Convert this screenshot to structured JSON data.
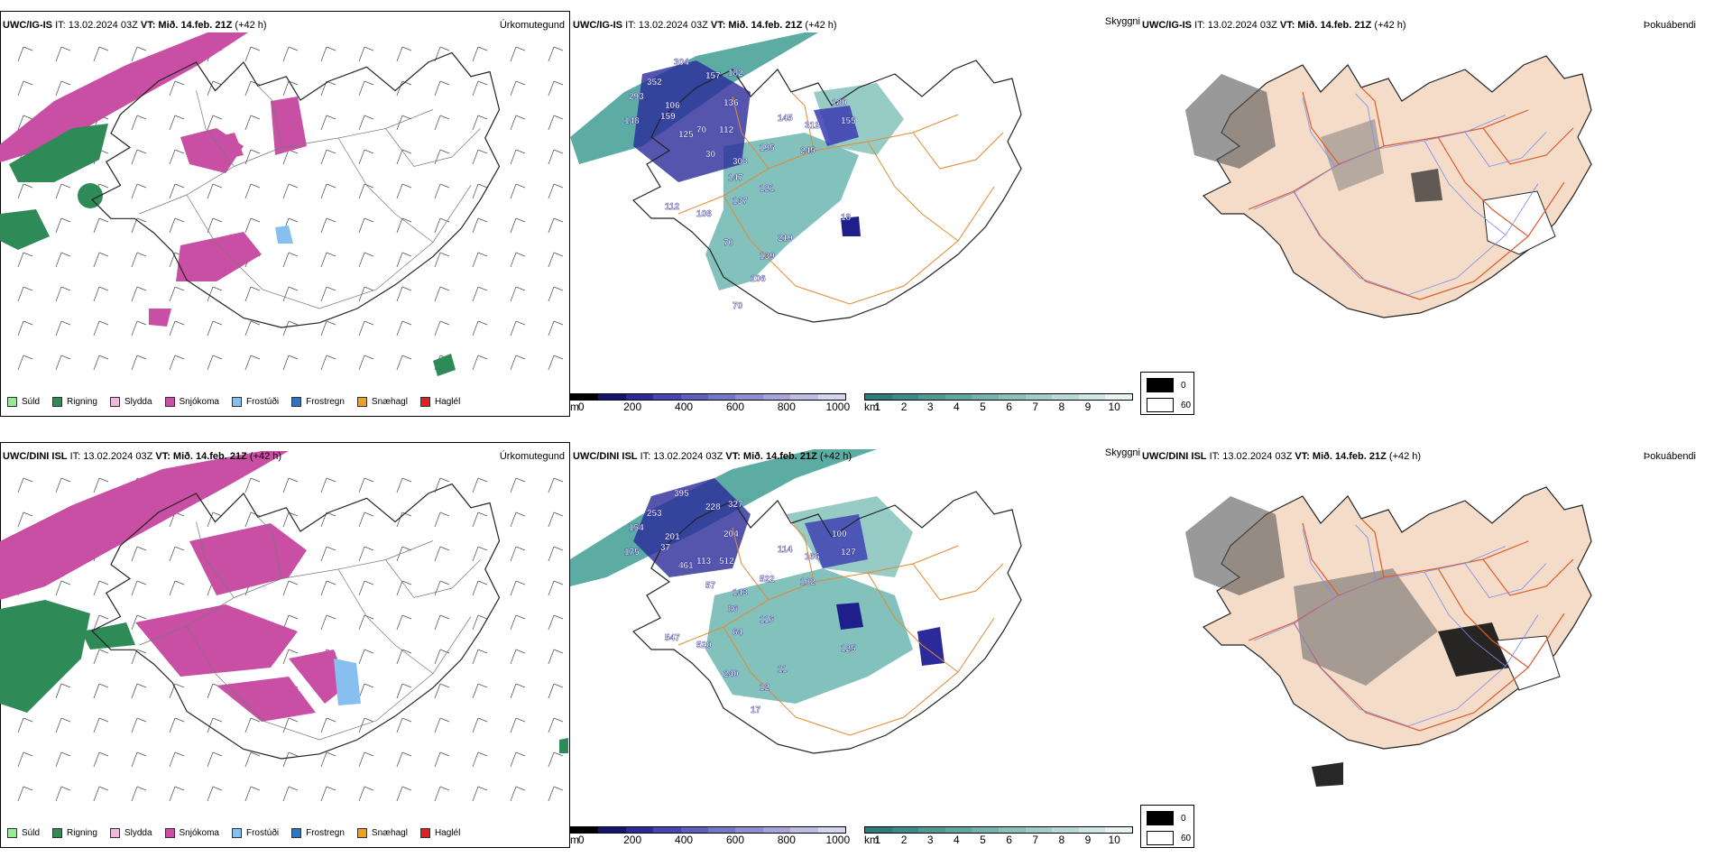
{
  "colors": {
    "sleet_pink": "#c84fa3",
    "rain_green": "#2e8b57",
    "frost_blue": "#4a86cf",
    "land_beige": "#f4dcc8",
    "road_orange": "#e66a2c",
    "teal": "#3f9e93",
    "navy": "#1f1f8c",
    "river_blue": "#7a8cf0"
  },
  "rows": [
    {
      "type_panel": {
        "header_model": "UWC/IG-IS",
        "header_it": "IT: 13.02.2024 03Z",
        "header_vt_label": "VT:",
        "header_vt_value": "Mið. 14.feb. 21Z",
        "header_lead": "(+42 h)",
        "right_label": "Úrkomutegund"
      },
      "cloud_panel": {
        "header_model": "UWC/IG-IS",
        "header_it": "IT: 13.02.2024 03Z",
        "header_vt_label": "VT:",
        "header_vt_value": "Mið. 14.feb. 21Z",
        "header_lead": "(+42 h)",
        "right_label": "Skyggni",
        "numbers": [
          "304",
          "182",
          "352",
          "157",
          "293",
          "106",
          "136",
          "145",
          "312",
          "180",
          "155",
          "148",
          "159",
          "125",
          "70",
          "112",
          "195",
          "245",
          "30",
          "303",
          "147",
          "121",
          "137",
          "112",
          "108",
          "70",
          "18",
          "219",
          "139",
          "106",
          "70"
        ]
      },
      "fog_panel": {
        "header_model": "UWC/IG-IS",
        "header_it": "IT: 13.02.2024 03Z",
        "header_vt_label": "VT:",
        "header_vt_value": "Mið. 14.feb. 21Z",
        "header_lead": "(+42 h)",
        "right_label": "Þokuábendi"
      }
    },
    {
      "type_panel": {
        "header_model": "UWC/DINI ISL",
        "header_it": "IT: 13.02.2024 03Z",
        "header_vt_label": "VT:",
        "header_vt_value": "Mið. 14.feb. 21Z",
        "header_lead": "(+42 h)",
        "right_label": "Úrkomutegund"
      },
      "cloud_panel": {
        "header_model": "UWC/DINI ISL",
        "header_it": "IT: 13.02.2024 03Z",
        "header_vt_label": "VT:",
        "header_vt_value": "Mið. 14.feb. 21Z",
        "header_lead": "(+42 h)",
        "right_label": "Skyggni",
        "numbers": [
          "395",
          "327",
          "253",
          "228",
          "154",
          "201",
          "204",
          "114",
          "166",
          "100",
          "127",
          "175",
          "37",
          "461",
          "113",
          "512",
          "522",
          "102",
          "57",
          "143",
          "86",
          "116",
          "64",
          "547",
          "520",
          "240",
          "125",
          "11",
          "12",
          "17"
        ]
      },
      "fog_panel": {
        "header_model": "UWC/DINI ISL",
        "header_it": "IT: 13.02.2024 03Z",
        "header_vt_label": "VT:",
        "header_vt_value": "Mið. 14.feb. 21Z",
        "header_lead": "(+42 h)",
        "right_label": "Þokuábendi"
      }
    }
  ],
  "precip_legend": [
    {
      "label": "Súld",
      "color": "#90ee90"
    },
    {
      "label": "Rigning",
      "color": "#2e8b57"
    },
    {
      "label": "Slydda",
      "color": "#f4b6d8"
    },
    {
      "label": "Snjókoma",
      "color": "#c84fa3"
    },
    {
      "label": "Frostúði",
      "color": "#87bff0"
    },
    {
      "label": "Frostregn",
      "color": "#2f74c0"
    },
    {
      "label": "Snæhagl",
      "color": "#f0a020"
    },
    {
      "label": "Haglél",
      "color": "#e02020"
    }
  ],
  "ceiling_bar": {
    "unit": "m",
    "ticks": [
      "0",
      "200",
      "400",
      "600",
      "800",
      "1000"
    ],
    "colors": [
      "#000000",
      "#14146e",
      "#2a2a9a",
      "#4545b4",
      "#5e5ec0",
      "#7676c8",
      "#8e8ed2",
      "#a6a6dc",
      "#bdbde6",
      "#d4d4ee"
    ]
  },
  "visibility_bar": {
    "unit": "km",
    "ticks": [
      "1",
      "2",
      "3",
      "4",
      "5",
      "6",
      "7",
      "8",
      "9",
      "10"
    ],
    "colors": [
      "#2b7f76",
      "#3a8d84",
      "#4c9a91",
      "#5ea79e",
      "#72b4ac",
      "#88c1ba",
      "#9fcdc8",
      "#b7dad6",
      "#cfe7e4",
      "#e8f3f2"
    ]
  },
  "fog_key": [
    {
      "label": "0",
      "color": "#000000"
    },
    {
      "label": "60",
      "color": "#ffffff"
    }
  ]
}
